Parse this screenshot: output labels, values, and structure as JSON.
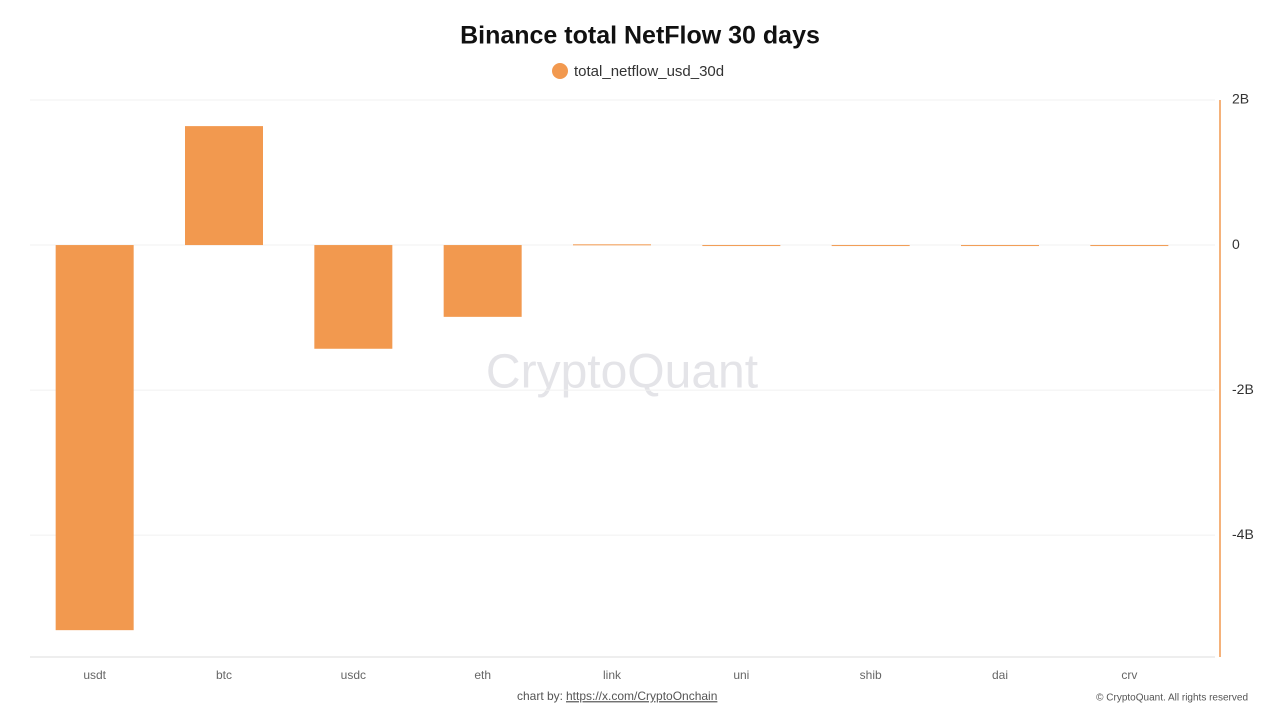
{
  "chart_data": {
    "type": "bar",
    "title": "Binance total NetFlow 30 days",
    "categories": [
      "usdt",
      "btc",
      "usdc",
      "eth",
      "link",
      "uni",
      "shib",
      "dai",
      "crv"
    ],
    "series": [
      {
        "name": "total_netflow_usd_30d",
        "color": "#f2994f",
        "values": [
          -5310000000,
          1640000000,
          -1430000000,
          -990000000,
          10000000,
          -10000000,
          -5000000,
          -10000000,
          -5000000
        ]
      }
    ],
    "ylim": [
      -5680000000,
      2000000000
    ],
    "yticks": [
      {
        "value": 2000000000,
        "label": "2B"
      },
      0,
      {
        "value": -2000000000,
        "label": "-2B"
      },
      {
        "value": -4000000000,
        "label": "-4B"
      }
    ],
    "grid": true,
    "legend": "top",
    "axis_side": "right",
    "axis_color": "#f2994f"
  },
  "watermark": "CryptoQuant",
  "footer": {
    "credit": "chart by:",
    "link": "https://x.com/CryptoOnchain",
    "copyright": "© CryptoQuant. All rights reserved"
  }
}
